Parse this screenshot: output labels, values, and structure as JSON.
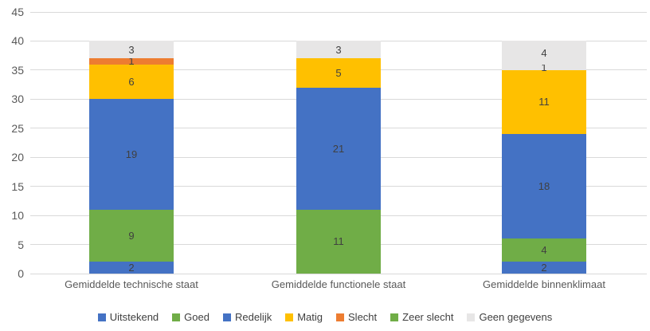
{
  "chart_data": {
    "type": "bar",
    "variant": "stacked-vertical",
    "title": "",
    "xlabel": "",
    "ylabel": "",
    "ylim": [
      0,
      45
    ],
    "y_ticks": [
      0,
      5,
      10,
      15,
      20,
      25,
      30,
      35,
      40,
      45
    ],
    "grid": true,
    "legend_position": "bottom",
    "axis_text_color": "#595959",
    "data_label_color": "#404040",
    "gridline_color": "#D9D9D9",
    "background_color": "#FFFFFF",
    "categories": [
      "Gemiddelde technische staat",
      "Gemiddelde functionele staat",
      "Gemiddelde binnenklimaat"
    ],
    "bars": [
      {
        "category": "Gemiddelde technische staat",
        "total": 40,
        "segments": [
          {
            "series": "Uitstekend",
            "value": 2,
            "label": "2",
            "color": "#4472C4"
          },
          {
            "series": "Goed",
            "value": 9,
            "label": "9",
            "color": "#70AD47"
          },
          {
            "series": "Redelijk",
            "value": 19,
            "label": "19",
            "color": "#4472C4"
          },
          {
            "series": "Matig",
            "value": 6,
            "label": "6",
            "color": "#FFC000"
          },
          {
            "series": "Slecht",
            "value": 1,
            "label": "1",
            "color": "#ED7D31"
          },
          {
            "series": "Geen gegevens",
            "value": 3,
            "label": "3",
            "color": "#E7E6E6"
          }
        ]
      },
      {
        "category": "Gemiddelde functionele staat",
        "total": 40,
        "segments": [
          {
            "series": "Uitstekend",
            "value": 0,
            "label": "0",
            "color": "#4472C4"
          },
          {
            "series": "Goed",
            "value": 11,
            "label": "11",
            "color": "#70AD47"
          },
          {
            "series": "Redelijk",
            "value": 21,
            "label": "21",
            "color": "#4472C4"
          },
          {
            "series": "Matig",
            "value": 5,
            "label": "5",
            "color": "#FFC000"
          },
          {
            "series": "Geen gegevens",
            "value": 3,
            "label": "3",
            "color": "#E7E6E6"
          }
        ]
      },
      {
        "category": "Gemiddelde binnenklimaat",
        "total": 40,
        "segments": [
          {
            "series": "Uitstekend",
            "value": 2,
            "label": "2",
            "color": "#4472C4"
          },
          {
            "series": "Goed",
            "value": 4,
            "label": "4",
            "color": "#70AD47"
          },
          {
            "series": "Redelijk",
            "value": 18,
            "label": "18",
            "color": "#4472C4"
          },
          {
            "series": "Matig",
            "value": 11,
            "label": "11",
            "color": "#FFC000"
          },
          {
            "series": "Geen gegevens",
            "value": 1,
            "label": "1",
            "color": "#E7E6E6"
          },
          {
            "series": "Geen gegevens",
            "value": 4,
            "label": "4",
            "color": "#E7E6E6"
          }
        ]
      }
    ],
    "legend": [
      {
        "label": "Uitstekend",
        "color": "#4472C4"
      },
      {
        "label": "Goed",
        "color": "#70AD47"
      },
      {
        "label": "Redelijk",
        "color": "#4472C4"
      },
      {
        "label": "Matig",
        "color": "#FFC000"
      },
      {
        "label": "Slecht",
        "color": "#ED7D31"
      },
      {
        "label": "Zeer slecht",
        "color": "#70AD47"
      },
      {
        "label": "Geen gegevens",
        "color": "#E7E6E6"
      }
    ]
  }
}
